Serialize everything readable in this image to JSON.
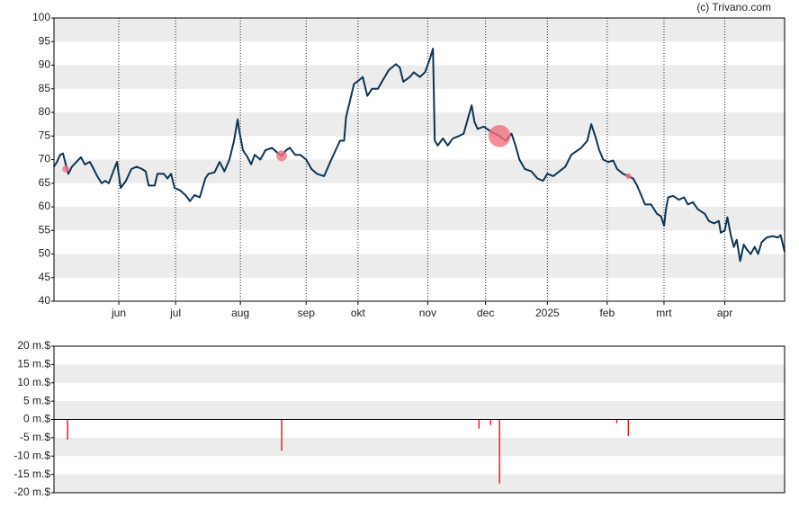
{
  "chart_data": [
    {
      "type": "line",
      "source": "(c) Trivano.com",
      "xlim": [
        -32.5,
        334
      ],
      "xticks": [
        {
          "value": 0,
          "label": "jun"
        },
        {
          "value": 28.5,
          "label": "jul"
        },
        {
          "value": 61,
          "label": "aug"
        },
        {
          "value": 94,
          "label": "sep"
        },
        {
          "value": 120,
          "label": "okt"
        },
        {
          "value": 155,
          "label": "nov"
        },
        {
          "value": 184,
          "label": "dec"
        },
        {
          "value": 215,
          "label": "2025"
        },
        {
          "value": 245,
          "label": "feb"
        },
        {
          "value": 273.5,
          "label": "mrt"
        },
        {
          "value": 304,
          "label": "apr"
        }
      ],
      "ylim": [
        40,
        100
      ],
      "yticks": [
        40,
        45,
        50,
        55,
        60,
        65,
        70,
        75,
        80,
        85,
        90,
        95,
        100
      ],
      "grid": true,
      "series": [
        {
          "color": "#0d3553",
          "x": [
            -32.5,
            -31,
            -29.4,
            -28,
            -26.6,
            -25.3,
            -23.5,
            -21.2,
            -19,
            -17,
            -14.5,
            -12.6,
            -10.8,
            -8.6,
            -6.8,
            -5,
            -3.2,
            -0.9,
            1,
            3.6,
            6.3,
            9,
            11.7,
            13.5,
            15,
            18,
            19.4,
            22.6,
            24.4,
            26.2,
            28,
            30.7,
            33.4,
            35.7,
            38,
            40.6,
            43.4,
            45,
            48,
            50.6,
            53,
            55.5,
            57.8,
            59.6,
            60.5,
            62.3,
            64.6,
            66.4,
            68.2,
            71,
            73.6,
            76.8,
            79.5,
            81.7,
            84,
            85.8,
            88.5,
            91,
            94,
            96.7,
            99.4,
            103,
            106.6,
            111,
            113,
            114,
            118,
            121,
            122.4,
            123.8,
            124.7,
            127,
            130,
            132,
            135.5,
            139,
            141,
            142.7,
            146,
            148,
            151,
            153.6,
            155.8,
            157.6,
            158.5,
            160,
            162.6,
            165,
            167.6,
            170.7,
            173,
            177,
            178.4,
            180,
            183,
            186.5,
            191,
            194,
            197,
            199,
            201,
            203.7,
            207,
            210,
            212.8,
            215,
            218,
            221,
            224,
            227,
            232,
            235,
            237,
            239,
            241,
            243,
            245.5,
            248,
            250,
            253,
            255.6,
            258,
            260,
            262,
            264,
            267,
            270,
            272,
            273.5,
            274.5,
            275.6,
            278,
            281,
            283.6,
            285.5,
            288,
            290.4,
            294,
            296,
            298.6,
            301,
            302,
            304,
            305.3,
            307,
            308.5,
            310,
            311.7,
            313.5,
            315,
            317,
            319,
            320.7,
            322.5,
            325,
            328,
            330.6,
            332,
            334
          ],
          "values": [
            68.5,
            69.5,
            71,
            71.3,
            69,
            67,
            68.5,
            69.5,
            70.5,
            69,
            69.5,
            68,
            66.5,
            65,
            65.5,
            65,
            67,
            69.5,
            64,
            65.5,
            68,
            68.5,
            68,
            67.5,
            64.5,
            64.5,
            67,
            67,
            66,
            67,
            64,
            63.5,
            62.5,
            61.2,
            62.5,
            62,
            66,
            67,
            67.3,
            69.5,
            67.5,
            70,
            74,
            78.5,
            76,
            72,
            70.5,
            69,
            71,
            70,
            72,
            72.5,
            71.5,
            70.8,
            72,
            72.5,
            71,
            71,
            70,
            68,
            67,
            66.5,
            70,
            74,
            74,
            79,
            86,
            87,
            87.5,
            85,
            83.5,
            85,
            85,
            86.5,
            89,
            90.2,
            89.5,
            86.5,
            87.5,
            88.5,
            87.5,
            88.5,
            91,
            93.5,
            74,
            73,
            74.5,
            73,
            74.5,
            75,
            75.5,
            81.5,
            78,
            76.5,
            77,
            76,
            75,
            74,
            75.5,
            73,
            70,
            68,
            67.5,
            66,
            65.5,
            67,
            66.5,
            67.5,
            68.5,
            71,
            72.5,
            74,
            77.5,
            75,
            72,
            70,
            69.5,
            69.8,
            68,
            67,
            66.5,
            66,
            64.5,
            62.5,
            60.5,
            60.5,
            58.5,
            58,
            56,
            59.5,
            62,
            62.3,
            61.5,
            62,
            60.5,
            61,
            59.5,
            58.5,
            57,
            56.5,
            57,
            54.5,
            55,
            57.8,
            54,
            51.5,
            53,
            48.5,
            52,
            51,
            50,
            51.5,
            50,
            52.5,
            53.5,
            53.8,
            53.5,
            54,
            50.5
          ]
        }
      ],
      "markers": {
        "color": "#f07080",
        "x": [
          -26.6,
          81.7,
          191,
          255.6
        ],
        "values": [
          68,
          70.8,
          75,
          66.5
        ],
        "sizes": [
          5.5,
          8.5,
          17.5,
          4.5
        ]
      }
    },
    {
      "type": "bar",
      "color": "#e8202a",
      "xlim": [
        -32.5,
        334
      ],
      "x": [
        -25.7,
        81.7,
        180.7,
        186.5,
        191,
        249.8,
        255.6
      ],
      "values": [
        -5.5,
        -8.5,
        -2.5,
        -1.5,
        -17.5,
        -1,
        -4.5
      ],
      "ylim": [
        -20,
        20
      ],
      "yticks": [
        {
          "value": -20,
          "label": "-20 m.$"
        },
        {
          "value": -15,
          "label": "-15 m.$"
        },
        {
          "value": -10,
          "label": "-10 m.$"
        },
        {
          "value": -5,
          "label": "-5 m.$"
        },
        {
          "value": 0,
          "label": "0 m.$"
        },
        {
          "value": 5,
          "label": "5 m.$"
        },
        {
          "value": 10,
          "label": "10 m.$"
        },
        {
          "value": 15,
          "label": "15 m.$"
        },
        {
          "value": 20,
          "label": "20 m.$"
        }
      ],
      "grid": true
    }
  ]
}
